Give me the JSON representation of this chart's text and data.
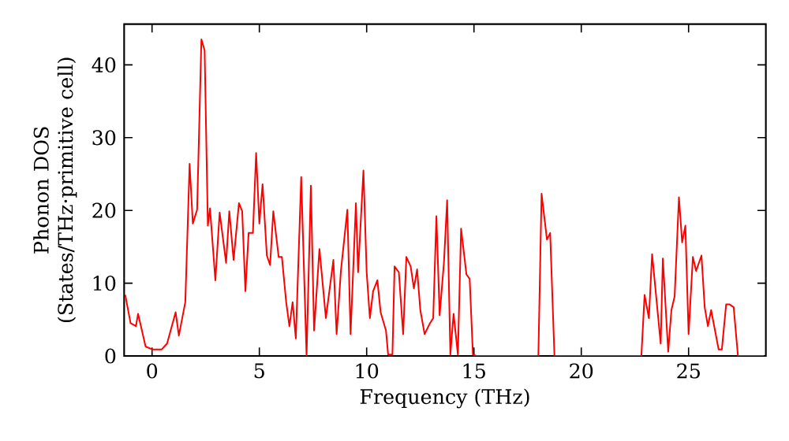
{
  "chart_data": {
    "type": "line",
    "xlabel": "Frequency (THz)",
    "ylabel": "Phonon DOS (States/THz·primitive cell)",
    "xlim": [
      -1.3,
      28.6
    ],
    "ylim": [
      0,
      45.6
    ],
    "xticks": [
      0,
      5,
      10,
      15,
      20,
      25
    ],
    "yticks": [
      0,
      10,
      20,
      30,
      40
    ],
    "grid": false,
    "marker": "none",
    "line_style": "solid",
    "series": [
      {
        "color": "#ff0000",
        "x": [
          -1.25,
          -1.0,
          -0.75,
          -0.65,
          -0.3,
          0,
          0.45,
          0.7,
          1.1,
          1.25,
          1.55,
          1.75,
          1.9,
          2.1,
          2.3,
          2.45,
          2.6,
          2.7,
          2.95,
          3.15,
          3.45,
          3.6,
          3.8,
          4.05,
          4.2,
          4.35,
          4.5,
          4.7,
          4.85,
          5.0,
          5.15,
          5.35,
          5.5,
          5.65,
          5.9,
          6.05,
          6.25,
          6.4,
          6.55,
          6.7,
          6.95,
          7.2,
          7.4,
          7.55,
          7.8,
          8.1,
          8.45,
          8.6,
          8.8,
          9.1,
          9.25,
          9.5,
          9.6,
          9.85,
          10.0,
          10.15,
          10.3,
          10.5,
          10.65,
          10.9,
          11.0,
          11.2,
          11.3,
          11.5,
          11.7,
          11.85,
          12.05,
          12.2,
          12.35,
          12.5,
          12.7,
          12.95,
          13.1,
          13.25,
          13.4,
          13.6,
          13.75,
          13.9,
          14.05,
          14.25,
          14.4,
          14.65,
          14.8,
          14.95,
          15.1,
          18.0,
          18.15,
          18.4,
          18.55,
          18.75,
          22.8,
          22.95,
          23.15,
          23.3,
          23.7,
          23.8,
          24.05,
          24.2,
          24.35,
          24.55,
          24.7,
          24.85,
          25.0,
          25.2,
          25.35,
          25.6,
          25.75,
          25.9,
          26.05,
          26.4,
          26.55,
          26.75,
          26.9,
          27.1,
          27.3,
          28.5
        ],
        "values": [
          8.4,
          4.5,
          4.1,
          5.8,
          1.3,
          0.9,
          0.9,
          1.7,
          6,
          2.8,
          7.4,
          26.4,
          18.2,
          20.1,
          43.5,
          42,
          17.9,
          20.3,
          10.4,
          19.7,
          12.8,
          19.9,
          13.2,
          21,
          19.9,
          8.9,
          16.9,
          16.9,
          27.9,
          18.2,
          23.6,
          13.8,
          12.5,
          19.9,
          13.6,
          13.6,
          7.4,
          4.1,
          7.4,
          2.4,
          24.6,
          0,
          23.4,
          3.5,
          14.7,
          5.2,
          13.2,
          3,
          11.7,
          20.1,
          3,
          21,
          11.5,
          25.5,
          11.5,
          5.2,
          8.9,
          10.4,
          6,
          3.5,
          0.2,
          0.2,
          12.3,
          11.5,
          3,
          13.6,
          12.3,
          9.3,
          11.9,
          6.3,
          3,
          4.5,
          5.2,
          19.2,
          5.6,
          12.8,
          21.4,
          0.2,
          5.8,
          0.2,
          17.5,
          11.2,
          10.6,
          0.2,
          0,
          0,
          22.3,
          16,
          16.9,
          0,
          0,
          8.4,
          5.2,
          14,
          1.7,
          13.4,
          0.6,
          6.3,
          8.2,
          21.8,
          15.6,
          17.9,
          3,
          13.6,
          11.7,
          13.8,
          6.7,
          4.1,
          6.3,
          0.9,
          0.9,
          7.1,
          7.1,
          6.7,
          0,
          0
        ]
      }
    ]
  }
}
